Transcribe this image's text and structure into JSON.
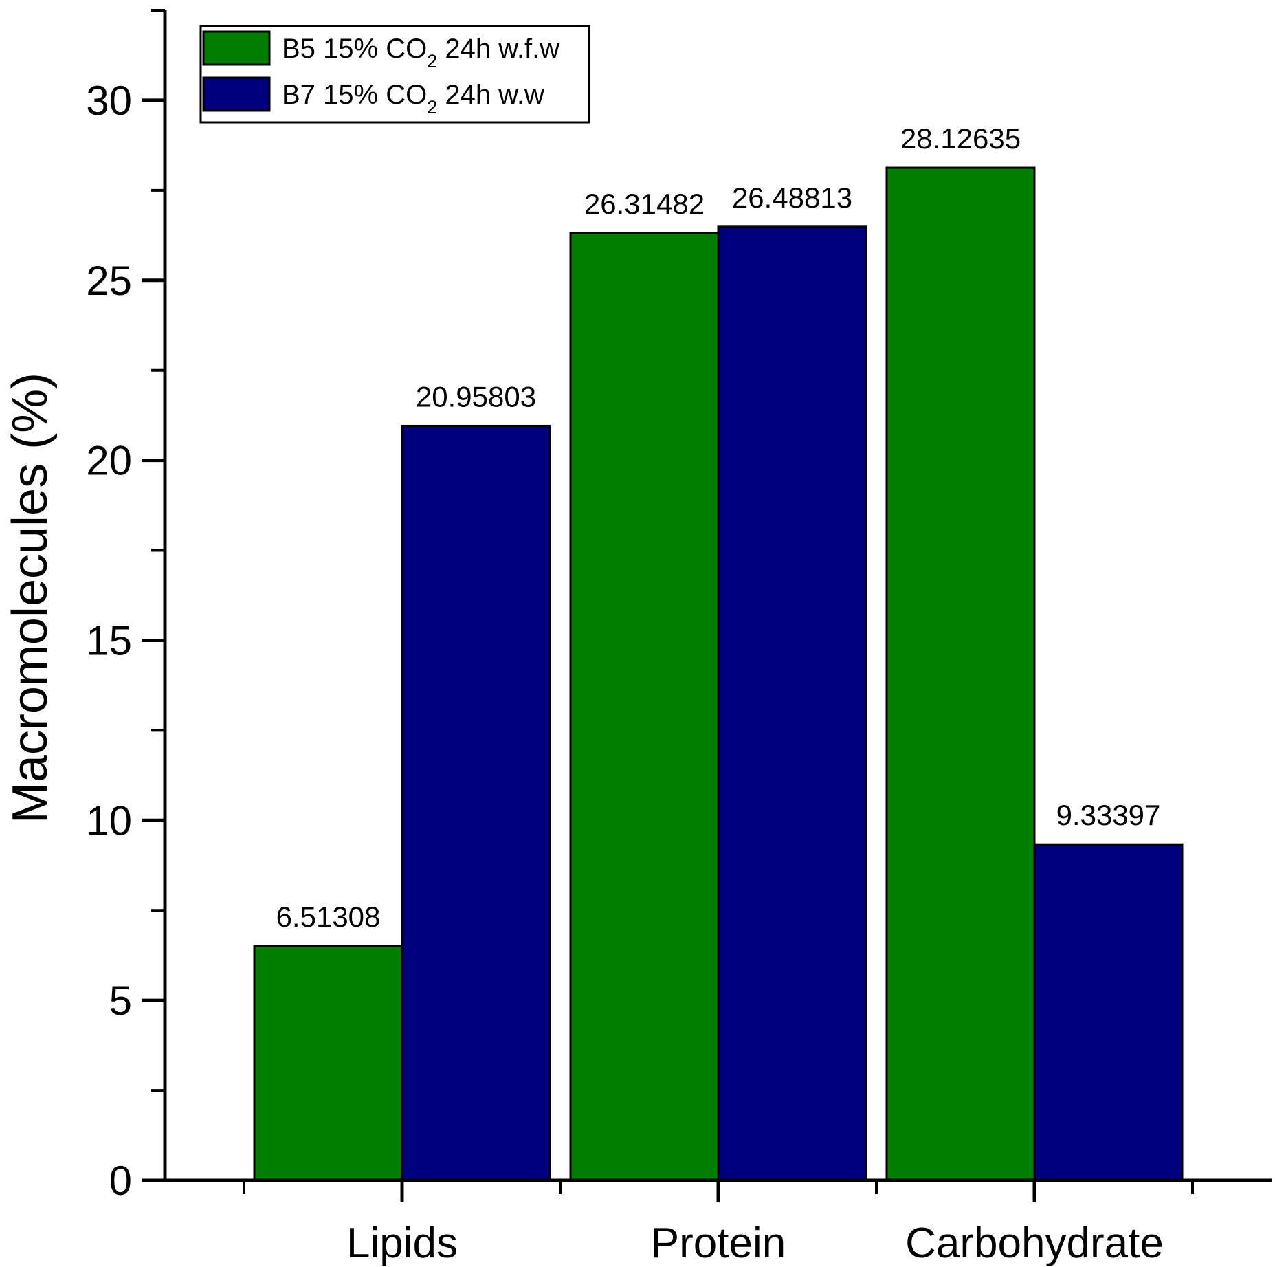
{
  "chart_data": {
    "type": "bar",
    "title": "",
    "xlabel": "",
    "ylabel": "Macromolecules (%)",
    "categories": [
      "Lipids",
      "Protein",
      "Carbohydrate"
    ],
    "series": [
      {
        "name": "B5 15% CO2 24h w.f.w",
        "legend_parts": {
          "pre": "B5 15% CO",
          "sub": "2",
          "post": " 24h w.f.w"
        },
        "color": "#007f00",
        "values": [
          6.51308,
          26.31482,
          28.12635
        ],
        "labels": [
          "6.51308",
          "26.31482",
          "28.12635"
        ]
      },
      {
        "name": "B7 15% CO2 24h w.w",
        "legend_parts": {
          "pre": "B7 15% CO",
          "sub": "2",
          "post": " 24h w.w"
        },
        "color": "#00007f",
        "values": [
          20.95803,
          26.48813,
          9.33397
        ],
        "labels": [
          "20.95803",
          "26.48813",
          "9.33397"
        ]
      }
    ],
    "ylim": [
      0,
      32.5
    ],
    "yticks": [
      0,
      5,
      10,
      15,
      20,
      25,
      30
    ],
    "yticks_minor": [
      2.5,
      7.5,
      12.5,
      17.5,
      22.5,
      27.5,
      32.5
    ],
    "grid": false,
    "legend_position": "top-left"
  }
}
